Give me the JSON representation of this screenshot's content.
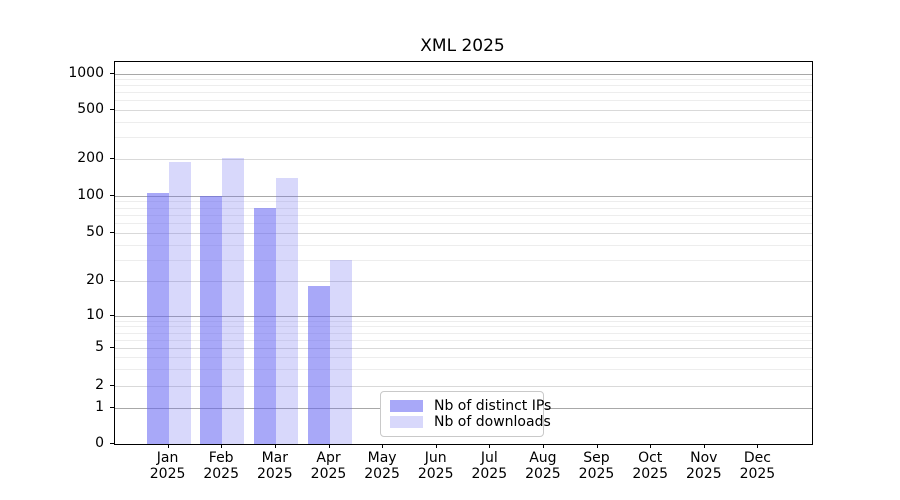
{
  "window": {
    "background": "#ffffff"
  },
  "chart_data": {
    "type": "bar",
    "title": "XML 2025",
    "x_categories": [
      "Jan",
      "Feb",
      "Mar",
      "Apr",
      "May",
      "Jun",
      "Jul",
      "Aug",
      "Sep",
      "Oct",
      "Nov",
      "Dec"
    ],
    "x_year": "2025",
    "series": [
      {
        "name": "Nb of distinct IPs",
        "color": "rgba(97,97,243,0.55)",
        "values": [
          105,
          100,
          80,
          18,
          null,
          null,
          null,
          null,
          null,
          null,
          null,
          null
        ]
      },
      {
        "name": "Nb of downloads",
        "color": "rgba(99,99,240,0.25)",
        "values": [
          190,
          205,
          140,
          30,
          null,
          null,
          null,
          null,
          null,
          null,
          null,
          null
        ]
      }
    ],
    "yticks": [
      0,
      1,
      2,
      5,
      10,
      20,
      50,
      100,
      200,
      500,
      1000
    ],
    "y_minor_ticks": [
      3,
      4,
      6,
      7,
      8,
      9,
      30,
      40,
      60,
      70,
      80,
      90,
      300,
      400,
      600,
      700,
      800,
      900
    ],
    "y_decade_ticks": [
      1,
      10,
      100,
      1000
    ],
    "y_scale": "log-like (symlog near zero)",
    "ylim": [
      0,
      1200
    ],
    "grid": "horizontal major + minor",
    "legend_position": "lower center-left inside plot"
  },
  "legend": {
    "items": [
      "Nb of distinct IPs",
      "Nb of downloads"
    ]
  }
}
